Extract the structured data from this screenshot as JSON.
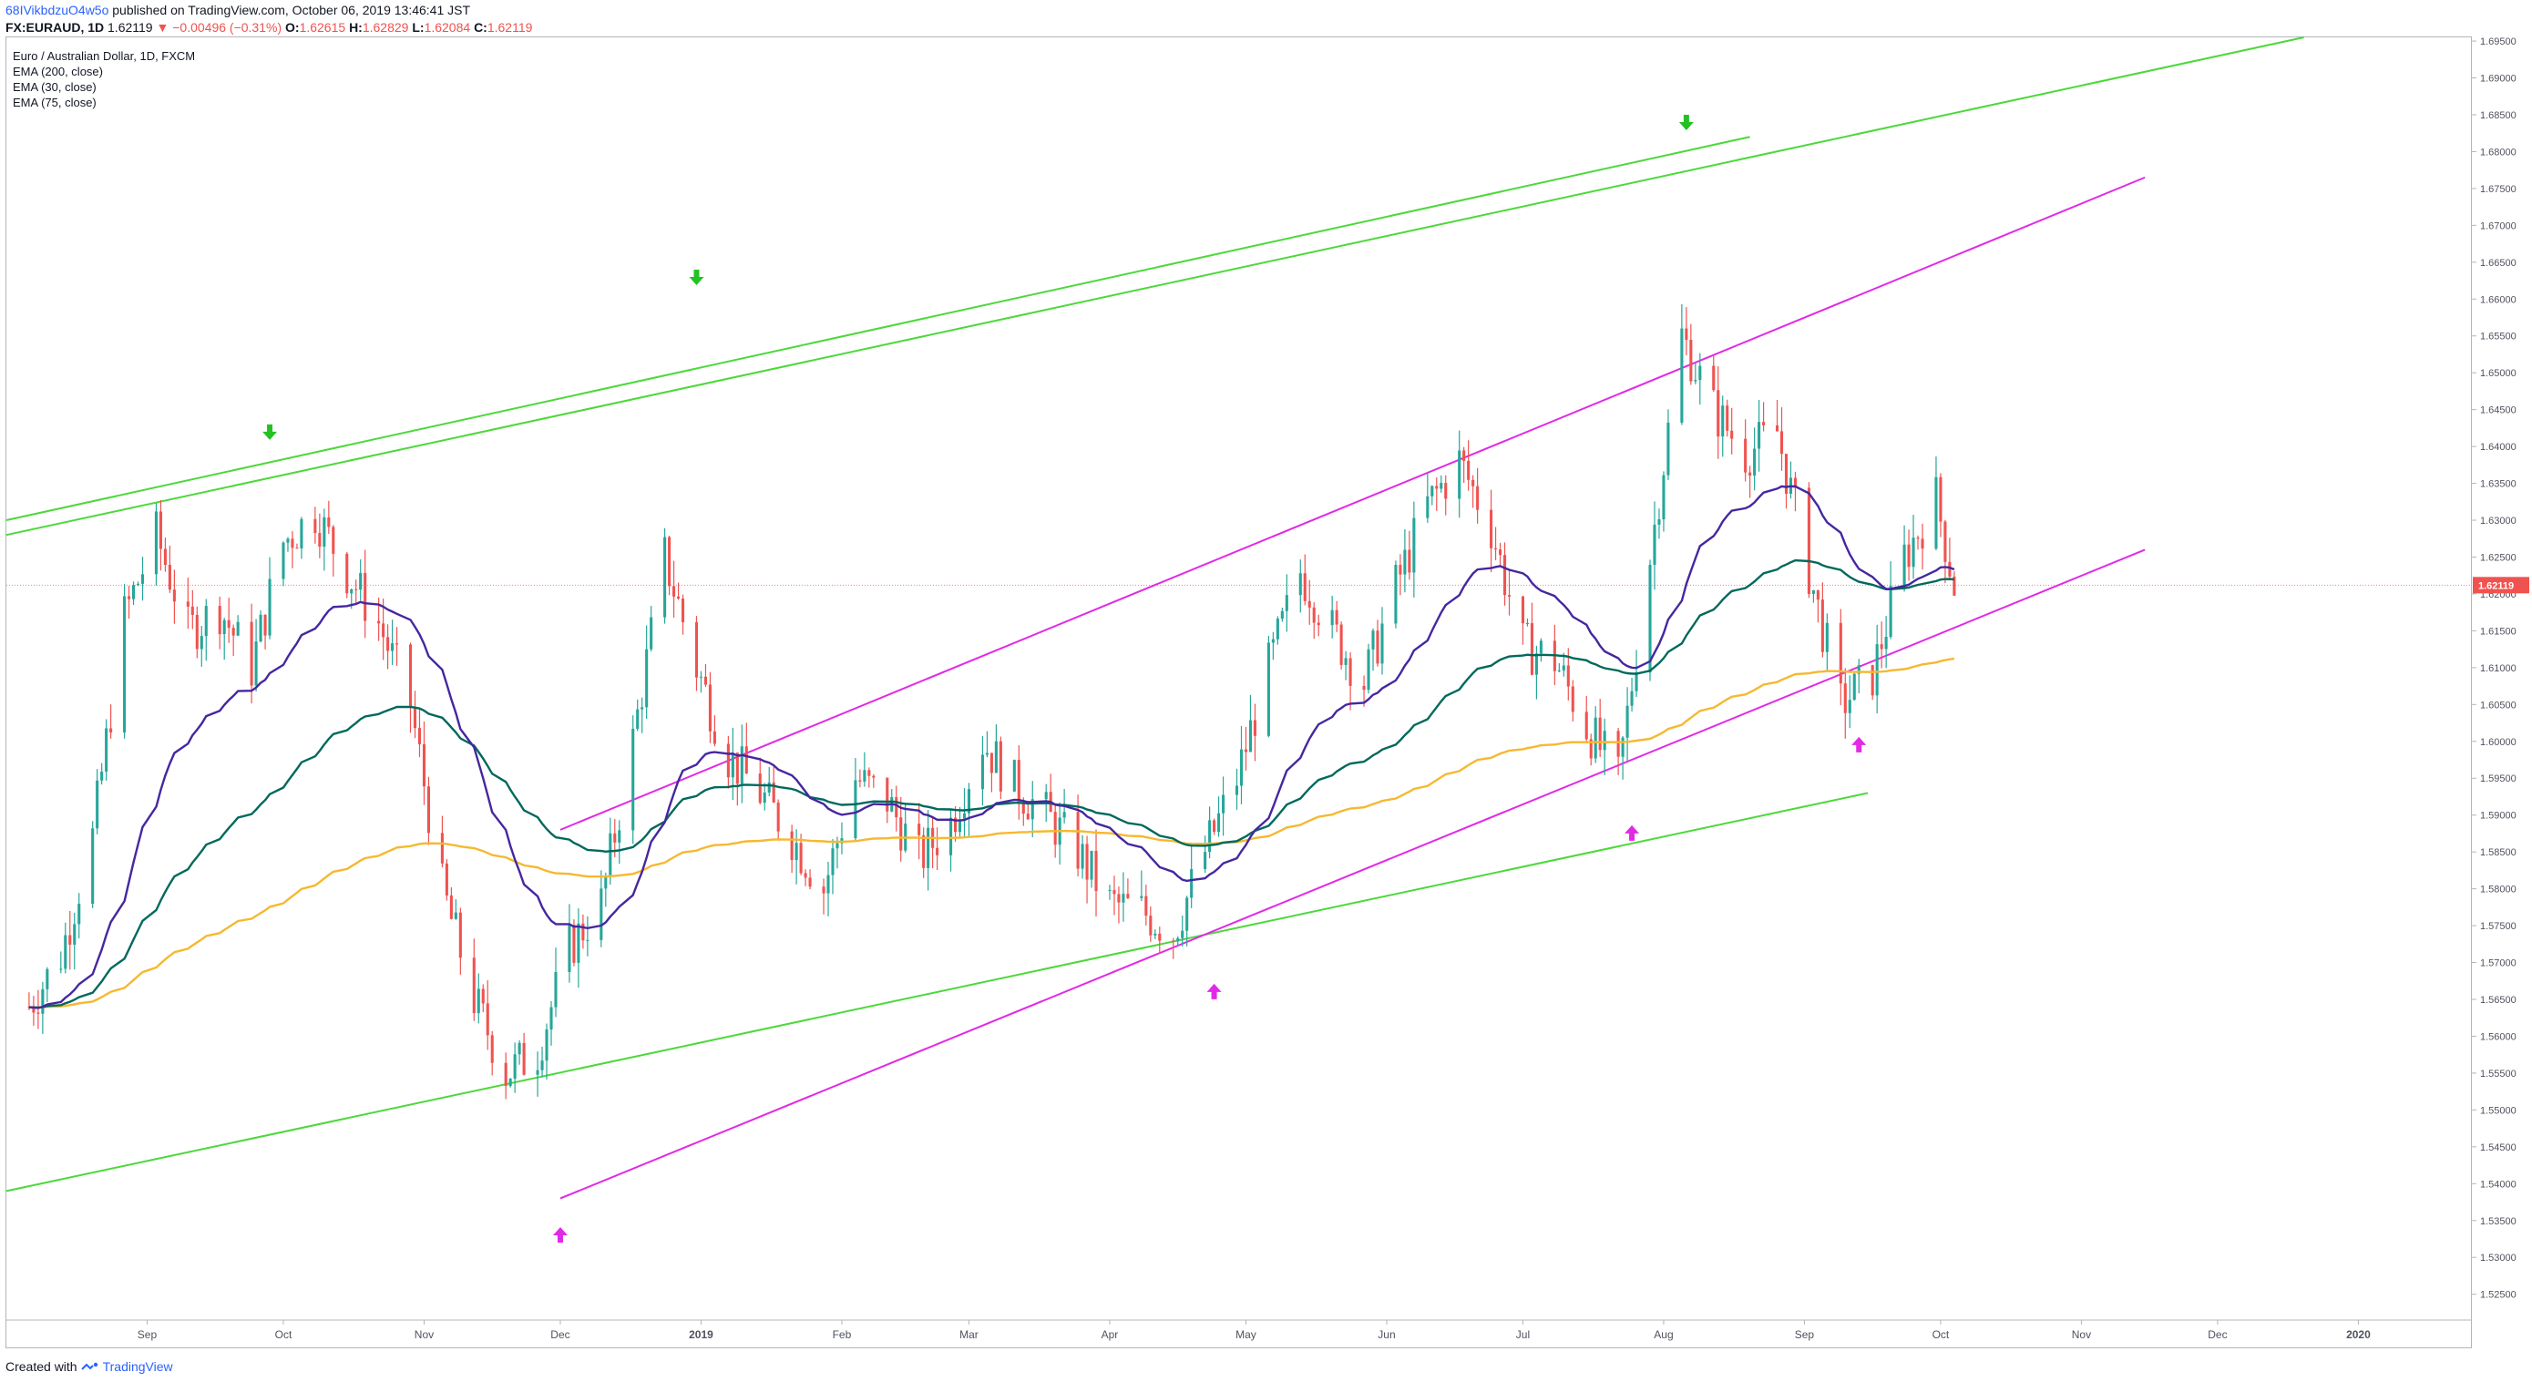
{
  "header": {
    "username": "68IVikbdzuO4w5o",
    "published": " published on TradingView.com, October 06, 2019 13:46:41 JST"
  },
  "quote": {
    "symbol": "FX:EURAUD, 1D",
    "last": "1.62119",
    "change_arrow": "▼",
    "change": "−0.00496 (−0.31%)",
    "o_label": "O:",
    "o": "1.62615",
    "h_label": "H:",
    "h": "1.62829",
    "l_label": "L:",
    "l": "1.62084",
    "c_label": "C:",
    "c": "1.62119"
  },
  "legend": {
    "title": "Euro / Australian Dollar, 1D, FXCM",
    "ema200": "EMA (200, close)",
    "ema30": "EMA (30, close)",
    "ema75": "EMA (75, close)"
  },
  "footer": {
    "created_with": "Created with",
    "brand": "TradingView"
  },
  "colors": {
    "up": "#26a69a",
    "down": "#ef5350",
    "ema200": "#f6b830",
    "ema30": "#4527a0",
    "ema75": "#00695c",
    "green_lines": "#4cd83a",
    "magenta_lines": "#e12ae6",
    "price_line": "#ef5350",
    "brand": "#2962ff"
  },
  "chart_data": {
    "type": "candlestick",
    "symbol": "EURAUD",
    "interval": "1D",
    "last_price": "1.62119",
    "y_ticks": [
      "1.69500",
      "1.69000",
      "1.68500",
      "1.68000",
      "1.67500",
      "1.67000",
      "1.66500",
      "1.66000",
      "1.65500",
      "1.65000",
      "1.64500",
      "1.64000",
      "1.63500",
      "1.63000",
      "1.62500",
      "1.62000",
      "1.61500",
      "1.61000",
      "1.60500",
      "1.60000",
      "1.59500",
      "1.59000",
      "1.58500",
      "1.58000",
      "1.57500",
      "1.57000",
      "1.56500",
      "1.56000",
      "1.55500",
      "1.55000",
      "1.54500",
      "1.54000",
      "1.53500",
      "1.53000",
      "1.52500"
    ],
    "x_ticks": [
      "Sep",
      "Oct",
      "Nov",
      "Dec",
      "2019",
      "Feb",
      "Mar",
      "Apr",
      "May",
      "Jun",
      "Jul",
      "Aug",
      "Sep",
      "Oct",
      "Nov",
      "Dec",
      "2020"
    ],
    "ylim": [
      1.5215,
      1.6955
    ],
    "close_series": [
      [
        "2018-08-06",
        1.564
      ],
      [
        "2018-08-13",
        1.571
      ],
      [
        "2018-08-20",
        1.587
      ],
      [
        "2018-08-27",
        1.617
      ],
      [
        "2018-09-03",
        1.628
      ],
      [
        "2018-09-10",
        1.615
      ],
      [
        "2018-09-17",
        1.618
      ],
      [
        "2018-09-24",
        1.61
      ],
      [
        "2018-10-01",
        1.627
      ],
      [
        "2018-10-08",
        1.631
      ],
      [
        "2018-10-15",
        1.623
      ],
      [
        "2018-10-22",
        1.616
      ],
      [
        "2018-10-29",
        1.605
      ],
      [
        "2018-11-05",
        1.58
      ],
      [
        "2018-11-12",
        1.565
      ],
      [
        "2018-11-19",
        1.555
      ],
      [
        "2018-11-26",
        1.558
      ],
      [
        "2018-12-03",
        1.572
      ],
      [
        "2018-12-10",
        1.578
      ],
      [
        "2018-12-17",
        1.6
      ],
      [
        "2018-12-24",
        1.625
      ],
      [
        "2018-12-31",
        1.61
      ],
      [
        "2019-01-07",
        1.598
      ],
      [
        "2019-01-14",
        1.593
      ],
      [
        "2019-01-21",
        1.587
      ],
      [
        "2019-01-28",
        1.58
      ],
      [
        "2019-02-04",
        1.595
      ],
      [
        "2019-02-11",
        1.592
      ],
      [
        "2019-02-18",
        1.584
      ],
      [
        "2019-02-25",
        1.589
      ],
      [
        "2019-03-04",
        1.6
      ],
      [
        "2019-03-11",
        1.594
      ],
      [
        "2019-03-18",
        1.59
      ],
      [
        "2019-03-25",
        1.585
      ],
      [
        "2019-04-01",
        1.578
      ],
      [
        "2019-04-08",
        1.577
      ],
      [
        "2019-04-15",
        1.574
      ],
      [
        "2019-04-22",
        1.585
      ],
      [
        "2019-04-29",
        1.595
      ],
      [
        "2019-05-06",
        1.61
      ],
      [
        "2019-05-13",
        1.623
      ],
      [
        "2019-05-20",
        1.615
      ],
      [
        "2019-05-27",
        1.608
      ],
      [
        "2019-06-03",
        1.621
      ],
      [
        "2019-06-10",
        1.632
      ],
      [
        "2019-06-17",
        1.638
      ],
      [
        "2019-06-24",
        1.629
      ],
      [
        "2019-07-01",
        1.613
      ],
      [
        "2019-07-08",
        1.611
      ],
      [
        "2019-07-15",
        1.602
      ],
      [
        "2019-07-22",
        1.595
      ],
      [
        "2019-07-29",
        1.625
      ],
      [
        "2019-08-05",
        1.655
      ],
      [
        "2019-08-12",
        1.645
      ],
      [
        "2019-08-19",
        1.639
      ],
      [
        "2019-08-26",
        1.642
      ],
      [
        "2019-09-02",
        1.623
      ],
      [
        "2019-09-09",
        1.605
      ],
      [
        "2019-09-16",
        1.609
      ],
      [
        "2019-09-23",
        1.625
      ],
      [
        "2019-09-30",
        1.633
      ],
      [
        "2019-10-04",
        1.6212
      ]
    ],
    "indicators": [
      "EMA (200, close)",
      "EMA (30, close)",
      "EMA (75, close)"
    ]
  }
}
